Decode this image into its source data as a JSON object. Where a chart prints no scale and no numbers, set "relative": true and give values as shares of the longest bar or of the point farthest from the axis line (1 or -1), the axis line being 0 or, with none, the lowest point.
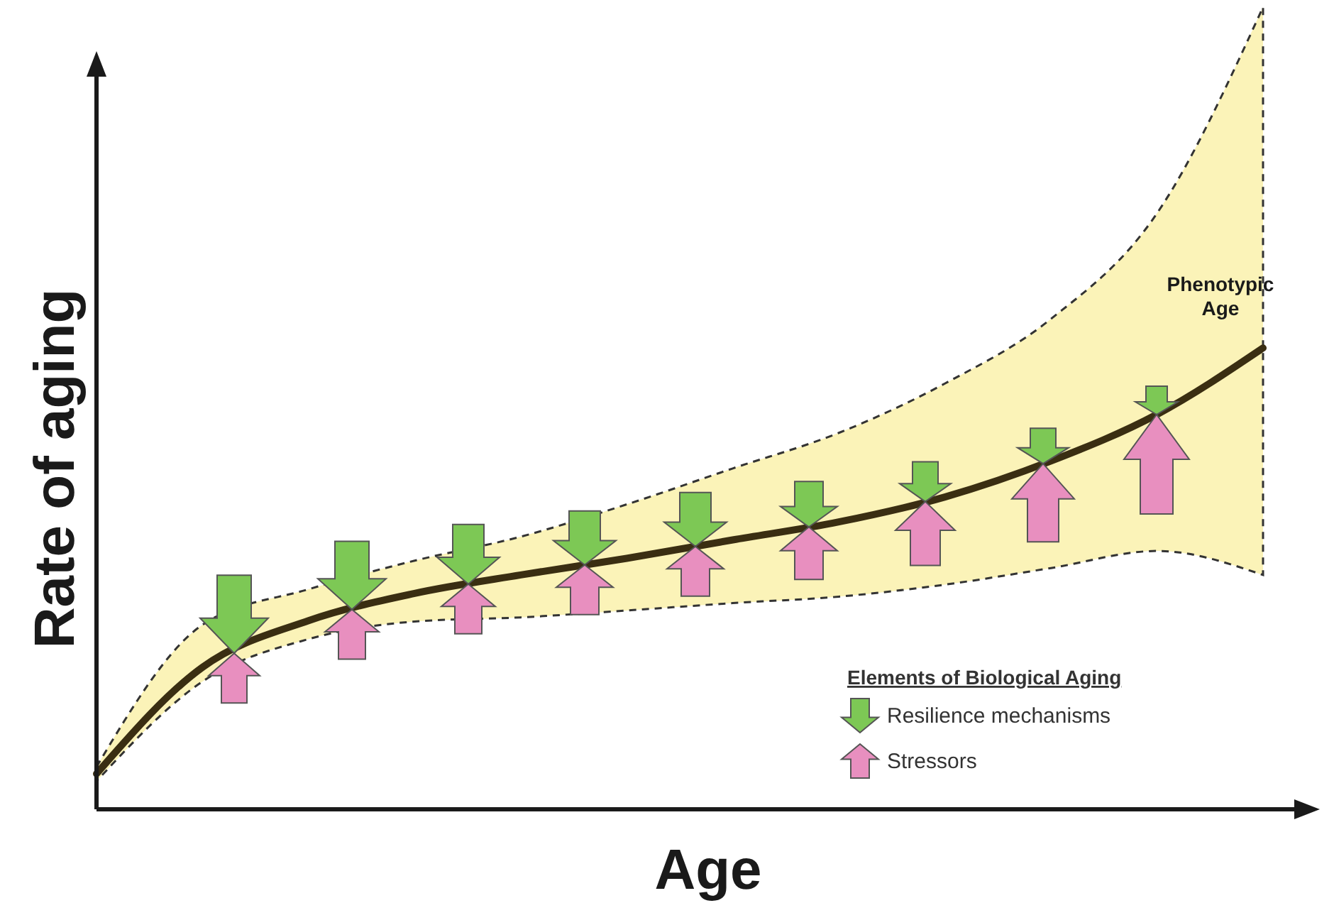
{
  "chart_data": {
    "type": "line",
    "relative": true,
    "xlabel": "Age",
    "ylabel": "Rate of aging",
    "categories": [
      null,
      null,
      null,
      null,
      null,
      null,
      null,
      null,
      null,
      null,
      null,
      null
    ],
    "series": [
      {
        "name": "Phenotypic Age",
        "color": "#3a2e12",
        "values": [
          0.077,
          0.308,
          0.409,
          0.468,
          0.508,
          0.544,
          0.584,
          0.623,
          0.677,
          0.755,
          0.856,
          1
        ],
        "lower": [
          0.061,
          0.277,
          0.369,
          0.407,
          0.416,
          0.431,
          0.447,
          0.461,
          0.487,
          0.523,
          0.56,
          0.508
        ],
        "upper": [
          0.092,
          0.4,
          0.477,
          0.539,
          0.591,
          0.661,
          0.739,
          0.816,
          0.923,
          1.063,
          1.292,
          1.739
        ]
      }
    ],
    "annotations": [
      "Elements of Biological Aging",
      "Resilience mechanisms",
      "Stressors"
    ],
    "line_style": "solid"
  }
}
